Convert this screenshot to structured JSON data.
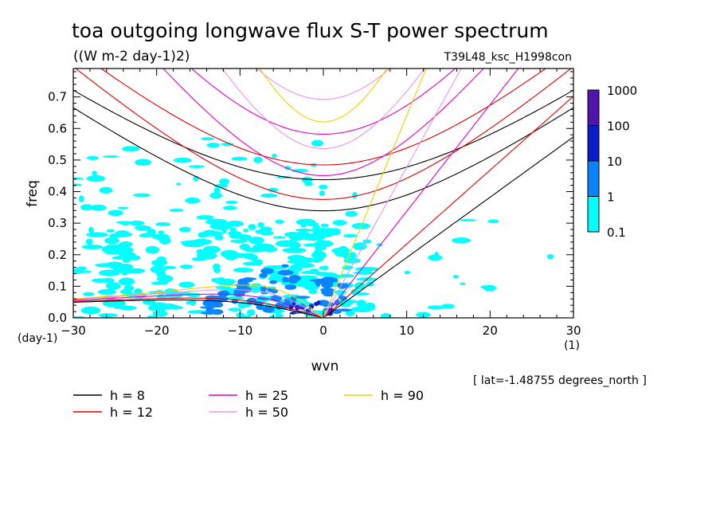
{
  "chart_data": {
    "type": "heatmap",
    "title": "toa outgoing longwave flux S-T power spectrum",
    "subtitle": "((W m-2 day-1)2)",
    "run_label": "T39L48_ksc_H1998con",
    "xlabel": "wvn",
    "ylabel": "freq",
    "x_unit": "(1)",
    "y_unit": "(day-1)",
    "footnote": "[ lat=-1.48755 degrees_north ]",
    "xlim": [
      -30,
      30
    ],
    "ylim": [
      0,
      0.79
    ],
    "x_ticks": [
      -30,
      -20,
      -10,
      0,
      10,
      20,
      30
    ],
    "y_ticks": [
      0.0,
      0.1,
      0.2,
      0.3,
      0.4,
      0.5,
      0.6,
      0.7
    ],
    "colorbar": {
      "labels": [
        "1000",
        "100",
        "10",
        "1",
        "0.1"
      ],
      "levels": [
        0.1,
        1,
        10,
        100,
        1000
      ],
      "colors": [
        "#00ffff",
        "#0a84ff",
        "#0a1ec8",
        "#5014aa"
      ]
    },
    "dispersion_curves": [
      {
        "name": "h =  8",
        "h": 8,
        "color": "#000000"
      },
      {
        "name": "h = 12",
        "h": 12,
        "color": "#dc0000"
      },
      {
        "name": "h = 25",
        "h": 25,
        "color": "#dc00c8"
      },
      {
        "name": "h = 50",
        "h": 50,
        "color": "#e696e6"
      },
      {
        "name": "h = 90",
        "h": 90,
        "color": "#ebd200"
      }
    ],
    "contour_regions": [
      {
        "level": 0.1,
        "x_range": [
          -30,
          30
        ],
        "y_range": [
          0,
          0.55
        ],
        "note": "scattered patches, densest for x<5, y<0.4"
      },
      {
        "level": 1,
        "x_range": [
          -14,
          3
        ],
        "y_range": [
          0,
          0.2
        ]
      },
      {
        "level": 10,
        "x_range": [
          -4,
          1
        ],
        "y_range": [
          0.01,
          0.06
        ]
      }
    ],
    "legend_placement": "bottom",
    "grid": false
  }
}
